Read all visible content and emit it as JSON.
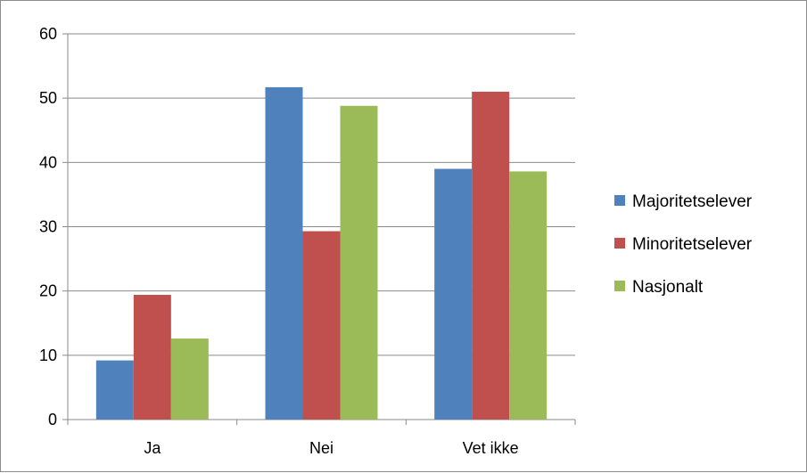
{
  "chart_data": {
    "type": "bar",
    "title": "",
    "xlabel": "",
    "ylabel": "",
    "categories": [
      "Ja",
      "Nei",
      "Vet ikke"
    ],
    "ylim": [
      0,
      60
    ],
    "yticks": [
      0,
      10,
      20,
      30,
      40,
      50,
      60
    ],
    "grid": true,
    "legend_position": "right",
    "series": [
      {
        "name": "Majoritetselever",
        "color": "#4f81bd",
        "values": [
          9.2,
          51.7,
          39.0
        ]
      },
      {
        "name": "Minoritetselever",
        "color": "#c0504d",
        "values": [
          19.4,
          29.3,
          51.0
        ]
      },
      {
        "name": "Nasjonalt",
        "color": "#9bbb59",
        "values": [
          12.6,
          48.8,
          38.6
        ]
      }
    ]
  }
}
